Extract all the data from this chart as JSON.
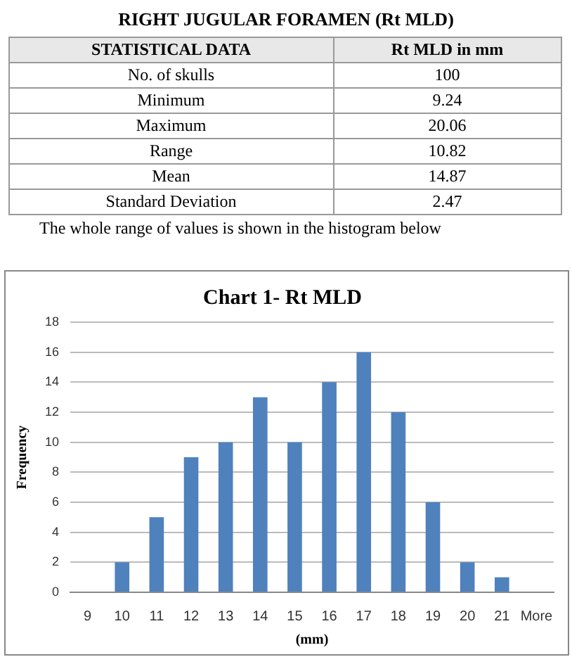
{
  "chart_data": {
    "type": "bar",
    "title": "Chart 1- Rt MLD",
    "xlabel": "(mm)",
    "ylabel": "Frequency",
    "categories": [
      "9",
      "10",
      "11",
      "12",
      "13",
      "14",
      "15",
      "16",
      "17",
      "18",
      "19",
      "20",
      "21",
      "More"
    ],
    "values": [
      0,
      2,
      5,
      9,
      10,
      13,
      10,
      14,
      16,
      12,
      6,
      2,
      1,
      0
    ],
    "color": "#4f81bd",
    "ylim": [
      0,
      18
    ],
    "yticks": [
      0,
      2,
      4,
      6,
      8,
      10,
      12,
      14,
      16,
      18
    ],
    "grid": "y",
    "legend": false,
    "annotations": [
      "RIGHT JUGULAR FORAMEN (Rt MLD)",
      "STATISTICAL DATA",
      "Rt MLD in mm",
      "No. of skulls",
      "100",
      "Minimum",
      "9.24",
      "Maximum",
      "20.06",
      "Range",
      "10.82",
      "Mean",
      "14.87",
      "Standard Deviation",
      "2.47",
      "The whole range of values is shown in the histogram below"
    ]
  }
}
